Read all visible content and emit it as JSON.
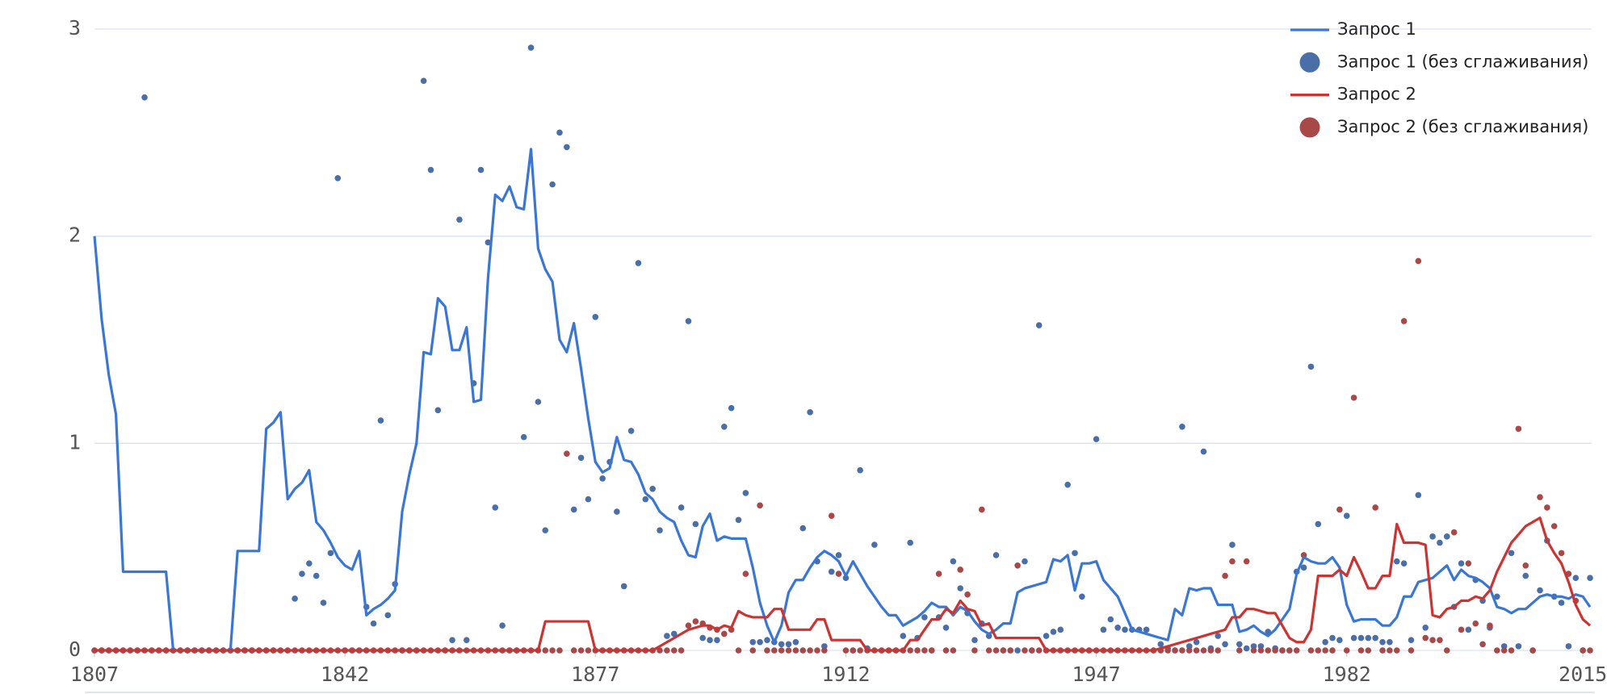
{
  "chart_data": {
    "type": "line",
    "legend": "top-right",
    "grid": true,
    "xlim": [
      1807,
      2016
    ],
    "ylim": [
      0,
      3
    ],
    "xticks": [
      1807,
      1842,
      1877,
      1912,
      1947,
      1982,
      2015
    ],
    "yticks": [
      0,
      1,
      2,
      3
    ],
    "x": [
      1807,
      1808,
      1809,
      1810,
      1811,
      1812,
      1813,
      1814,
      1815,
      1816,
      1817,
      1818,
      1819,
      1820,
      1821,
      1822,
      1823,
      1824,
      1825,
      1826,
      1827,
      1828,
      1829,
      1830,
      1831,
      1832,
      1833,
      1834,
      1835,
      1836,
      1837,
      1838,
      1839,
      1840,
      1841,
      1842,
      1843,
      1844,
      1845,
      1846,
      1847,
      1848,
      1849,
      1850,
      1851,
      1852,
      1853,
      1854,
      1855,
      1856,
      1857,
      1858,
      1859,
      1860,
      1861,
      1862,
      1863,
      1864,
      1865,
      1866,
      1867,
      1868,
      1869,
      1870,
      1871,
      1872,
      1873,
      1874,
      1875,
      1876,
      1877,
      1878,
      1879,
      1880,
      1881,
      1882,
      1883,
      1884,
      1885,
      1886,
      1887,
      1888,
      1889,
      1890,
      1891,
      1892,
      1893,
      1894,
      1895,
      1896,
      1897,
      1898,
      1899,
      1900,
      1901,
      1902,
      1903,
      1904,
      1905,
      1906,
      1907,
      1908,
      1909,
      1910,
      1911,
      1912,
      1913,
      1914,
      1915,
      1916,
      1917,
      1918,
      1919,
      1920,
      1921,
      1922,
      1923,
      1924,
      1925,
      1926,
      1927,
      1928,
      1929,
      1930,
      1931,
      1932,
      1933,
      1934,
      1935,
      1936,
      1937,
      1938,
      1939,
      1940,
      1941,
      1942,
      1943,
      1944,
      1945,
      1946,
      1947,
      1948,
      1949,
      1950,
      1951,
      1952,
      1953,
      1954,
      1955,
      1956,
      1957,
      1958,
      1959,
      1960,
      1961,
      1962,
      1963,
      1964,
      1965,
      1966,
      1967,
      1968,
      1969,
      1970,
      1971,
      1972,
      1973,
      1974,
      1975,
      1976,
      1977,
      1978,
      1979,
      1980,
      1981,
      1982,
      1983,
      1984,
      1985,
      1986,
      1987,
      1988,
      1989,
      1990,
      1991,
      1992,
      1993,
      1994,
      1995,
      1996,
      1997,
      1998,
      1999,
      2000,
      2001,
      2002,
      2003,
      2004,
      2005,
      2006,
      2007,
      2008,
      2009,
      2010,
      2011,
      2012,
      2013,
      2014,
      2015,
      2016
    ],
    "series": [
      {
        "name": "Запрос 1 (без сглаживания)",
        "style": "dot",
        "color": "#4a6ea8",
        "values": [
          0,
          0,
          0,
          0,
          0,
          0,
          0,
          2.67,
          0,
          0,
          0,
          0,
          0,
          0,
          0,
          0,
          0,
          0,
          0,
          0,
          0,
          0,
          0,
          0,
          0,
          0,
          0,
          0,
          0.25,
          0.37,
          0.42,
          0.36,
          0.23,
          0.47,
          2.28,
          0,
          0,
          0,
          0.21,
          0.13,
          1.11,
          0.17,
          0.32,
          0,
          0,
          0,
          2.75,
          2.32,
          1.16,
          0,
          0.05,
          2.08,
          0.05,
          1.29,
          2.32,
          1.97,
          0.69,
          0.12,
          0,
          0,
          1.03,
          2.91,
          1.2,
          0.58,
          2.25,
          2.5,
          2.43,
          0.68,
          0.93,
          0.73,
          1.61,
          0.83,
          0.91,
          0.67,
          0.31,
          1.06,
          1.87,
          0.73,
          0.78,
          0.58,
          0.07,
          0.08,
          0.69,
          1.59,
          0.61,
          0.06,
          0.05,
          0.05,
          1.08,
          1.17,
          0.63,
          0.76,
          0.04,
          0.04,
          0.05,
          0.04,
          0.03,
          0.03,
          0.04,
          0.59,
          1.15,
          0.43,
          0.02,
          0.38,
          0.46,
          0.35,
          0,
          0.87,
          0.01,
          0.51,
          0,
          0,
          0,
          0.07,
          0.52,
          0.06,
          0.16,
          0,
          0.16,
          0.11,
          0.43,
          0.3,
          0.18,
          0.05,
          0.13,
          0.07,
          0.46,
          0,
          0,
          0,
          0.43,
          0,
          1.57,
          0.07,
          0.09,
          0.1,
          0.8,
          0.47,
          0.26,
          0,
          1.02,
          0.1,
          0.15,
          0.11,
          0.1,
          0.1,
          0.1,
          0.1,
          0,
          0.03,
          0.01,
          0,
          1.08,
          0.02,
          0.04,
          0.96,
          0.01,
          0.07,
          0.03,
          0.51,
          0.03,
          0.01,
          0.02,
          0.02,
          0.09,
          0.01,
          0,
          0,
          0.38,
          0.4,
          1.37,
          0.61,
          0.04,
          0.06,
          0.05,
          0.65,
          0.06,
          0.06,
          0.06,
          0.06,
          0.04,
          0.04,
          0.43,
          0.42,
          0.05,
          0.75,
          0.11,
          0.55,
          0.52,
          0.55,
          0.21,
          0.42,
          0.1,
          0.34,
          0.24,
          0.11,
          0.26,
          0.02,
          0.47,
          0.02,
          0.36,
          0,
          0.29,
          0.53,
          0.26,
          0.23,
          0.02,
          0.35,
          0,
          0.35
        ]
      },
      {
        "name": "Запрос 2 (без сглаживания)",
        "style": "dot",
        "color": "#a84848",
        "values": [
          0,
          0,
          0,
          0,
          0,
          0,
          0,
          0,
          0,
          0,
          0,
          0,
          0,
          0,
          0,
          0,
          0,
          0,
          0,
          0,
          0,
          0,
          0,
          0,
          0,
          0,
          0,
          0,
          0,
          0,
          0,
          0,
          0,
          0,
          0,
          0,
          0,
          0,
          0,
          0,
          0,
          0,
          0,
          0,
          0,
          0,
          0,
          0,
          0,
          0,
          0,
          0,
          0,
          0,
          0,
          0,
          0,
          0,
          0,
          0,
          0,
          0,
          0,
          0,
          0,
          0,
          0.95,
          0,
          0,
          0,
          0,
          0,
          0,
          0,
          0,
          0,
          0,
          0,
          0,
          0,
          0,
          0,
          0,
          0.12,
          0.14,
          0.13,
          0.11,
          0.1,
          0.08,
          0.1,
          0,
          0.37,
          0,
          0.7,
          0,
          0,
          0,
          0,
          0,
          0,
          0,
          0,
          0,
          0.65,
          0.37,
          0,
          0,
          0,
          0,
          0,
          0,
          0,
          0,
          0,
          0,
          0,
          0,
          0,
          0.37,
          0,
          0,
          0.39,
          0.27,
          0,
          0.68,
          0,
          0,
          0,
          0,
          0.41,
          0,
          0,
          0,
          0,
          0,
          0,
          0,
          0,
          0,
          0,
          0,
          0,
          0,
          0,
          0,
          0,
          0,
          0,
          0,
          0,
          0,
          0,
          0,
          0,
          0,
          0,
          0,
          0,
          0.36,
          0.43,
          0,
          0.43,
          0,
          0,
          0,
          0,
          0,
          0,
          0,
          0.46,
          0,
          0,
          0,
          0,
          0.68,
          0,
          1.22,
          0,
          0,
          0.69,
          0,
          0,
          0,
          1.59,
          0,
          1.88,
          0.06,
          0.05,
          0.05,
          0,
          0.57,
          0.1,
          0.42,
          0.13,
          0.03,
          0.12,
          0,
          0,
          0,
          1.07,
          0.41,
          0,
          0.74,
          0.69,
          0.6,
          0.47,
          0.37,
          0.24,
          0,
          0
        ]
      },
      {
        "name": "Запрос 1",
        "style": "line",
        "color": "#3a77d4",
        "values": [
          2,
          1.6,
          1.33,
          1.14,
          0.38,
          0.38,
          0.38,
          0.38,
          0.38,
          0.38,
          0.38,
          0,
          0,
          0,
          0,
          0,
          0,
          0,
          0,
          0,
          0.48,
          0.48,
          0.48,
          0.48,
          1.07,
          1.1,
          1.15,
          0.73,
          0.78,
          0.81,
          0.87,
          0.62,
          0.58,
          0.52,
          0.45,
          0.41,
          0.39,
          0.48,
          0.17,
          0.2,
          0.22,
          0.25,
          0.29,
          0.67,
          0.85,
          1,
          1.44,
          1.43,
          1.7,
          1.66,
          1.45,
          1.45,
          1.56,
          1.2,
          1.21,
          1.8,
          2.2,
          2.17,
          2.24,
          2.14,
          2.13,
          2.42,
          1.94,
          1.84,
          1.78,
          1.5,
          1.44,
          1.58,
          1.36,
          1.12,
          0.91,
          0.86,
          0.88,
          1.03,
          0.92,
          0.91,
          0.85,
          0.76,
          0.73,
          0.67,
          0.64,
          0.62,
          0.53,
          0.46,
          0.45,
          0.6,
          0.66,
          0.53,
          0.55,
          0.54,
          0.54,
          0.54,
          0.4,
          0.23,
          0.12,
          0.04,
          0.12,
          0.28,
          0.34,
          0.34,
          0.4,
          0.45,
          0.48,
          0.46,
          0.43,
          0.36,
          0.43,
          0.37,
          0.31,
          0.26,
          0.21,
          0.17,
          0.17,
          0.12,
          0.14,
          0.16,
          0.19,
          0.23,
          0.21,
          0.21,
          0.17,
          0.21,
          0.19,
          0.14,
          0.1,
          0.08,
          0.1,
          0.13,
          0.13,
          0.28,
          0.3,
          0.31,
          0.32,
          0.33,
          0.44,
          0.43,
          0.46,
          0.29,
          0.42,
          0.42,
          0.43,
          0.34,
          0.3,
          0.26,
          0.18,
          0.1,
          0.09,
          0.08,
          0.07,
          0.06,
          0.05,
          0.2,
          0.17,
          0.3,
          0.29,
          0.3,
          0.3,
          0.22,
          0.22,
          0.22,
          0.09,
          0.1,
          0.12,
          0.09,
          0.07,
          0.1,
          0.15,
          0.2,
          0.37,
          0.45,
          0.43,
          0.42,
          0.42,
          0.45,
          0.4,
          0.22,
          0.14,
          0.15,
          0.15,
          0.15,
          0.12,
          0.12,
          0.16,
          0.26,
          0.26,
          0.33,
          0.34,
          0.35,
          0.38,
          0.41,
          0.34,
          0.39,
          0.36,
          0.35,
          0.33,
          0.3,
          0.21,
          0.2,
          0.18,
          0.2,
          0.2,
          0.23,
          0.26,
          0.27,
          0.26,
          0.26,
          0.25,
          0.27,
          0.26,
          0.21
        ]
      },
      {
        "name": "Запрос 2",
        "style": "line",
        "color": "#cc3333",
        "values": [
          0,
          0,
          0,
          0,
          0,
          0,
          0,
          0,
          0,
          0,
          0,
          0,
          0,
          0,
          0,
          0,
          0,
          0,
          0,
          0,
          0,
          0,
          0,
          0,
          0,
          0,
          0,
          0,
          0,
          0,
          0,
          0,
          0,
          0,
          0,
          0,
          0,
          0,
          0,
          0,
          0,
          0,
          0,
          0,
          0,
          0,
          0,
          0,
          0,
          0,
          0,
          0,
          0,
          0,
          0,
          0,
          0,
          0,
          0,
          0,
          0,
          0,
          0,
          0.14,
          0.14,
          0.14,
          0.14,
          0.14,
          0.14,
          0.14,
          0,
          0,
          0,
          0,
          0,
          0,
          0,
          0,
          0,
          0.02,
          0.04,
          0.06,
          0.08,
          0.1,
          0.11,
          0.12,
          0.12,
          0.1,
          0.12,
          0.11,
          0.19,
          0.17,
          0.16,
          0.16,
          0.16,
          0.2,
          0.2,
          0.1,
          0.1,
          0.1,
          0.1,
          0.15,
          0.15,
          0.05,
          0.05,
          0.05,
          0.05,
          0.05,
          0,
          0,
          0,
          0,
          0,
          0,
          0.05,
          0.05,
          0.1,
          0.15,
          0.15,
          0.2,
          0.18,
          0.24,
          0.2,
          0.19,
          0.12,
          0.13,
          0.06,
          0.06,
          0.06,
          0.06,
          0.06,
          0.06,
          0.06,
          0,
          0,
          0,
          0,
          0,
          0,
          0,
          0,
          0,
          0,
          0,
          0,
          0,
          0,
          0,
          0,
          0.01,
          0.02,
          0.03,
          0.04,
          0.05,
          0.06,
          0.07,
          0.08,
          0.09,
          0.1,
          0.16,
          0.16,
          0.2,
          0.2,
          0.19,
          0.18,
          0.18,
          0.12,
          0.06,
          0.04,
          0.04,
          0.1,
          0.36,
          0.36,
          0.36,
          0.39,
          0.36,
          0.45,
          0.38,
          0.3,
          0.3,
          0.36,
          0.36,
          0.61,
          0.52,
          0.52,
          0.52,
          0.51,
          0.17,
          0.16,
          0.2,
          0.21,
          0.24,
          0.24,
          0.26,
          0.25,
          0.29,
          0.38,
          0.45,
          0.52,
          0.56,
          0.6,
          0.62,
          0.64,
          0.53,
          0.47,
          0.42,
          0.33,
          0.22,
          0.15,
          0.12
        ]
      }
    ]
  }
}
